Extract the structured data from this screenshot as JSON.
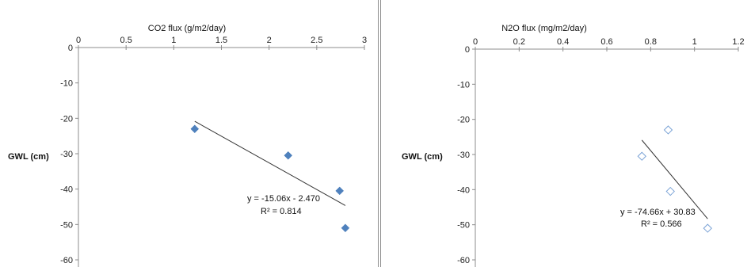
{
  "chart_data": [
    {
      "type": "scatter",
      "title": "CO2 flux (g/m2/day)",
      "xlabel": "",
      "ylabel": "GWL (cm)",
      "xlim": [
        0,
        3
      ],
      "ylim": [
        -60,
        0
      ],
      "x_ticks": [
        "0",
        "0.5",
        "1",
        "1.5",
        "2",
        "2.5",
        "3"
      ],
      "y_ticks": [
        "0",
        "-10",
        "-20",
        "-30",
        "-40",
        "-50",
        "-60"
      ],
      "x_tick_values": [
        0,
        0.5,
        1,
        1.5,
        2,
        2.5,
        3
      ],
      "y_tick_values": [
        0,
        -10,
        -20,
        -30,
        -40,
        -50,
        -60
      ],
      "marker": "filled-diamond",
      "marker_color": "#4f81bd",
      "series": [
        {
          "x": [
            1.22,
            2.2,
            2.74,
            2.8
          ],
          "y": [
            -23,
            -30.5,
            -40.5,
            -51
          ]
        }
      ],
      "trendline": {
        "slope": -15.06,
        "intercept": -2.47,
        "x_range": [
          1.22,
          2.8
        ]
      },
      "equation": "y = -15.06x - 2.470",
      "r2": "R² = 0.814",
      "grid": false
    },
    {
      "type": "scatter",
      "title": "N2O flux (mg/m2/day)",
      "xlabel": "",
      "ylabel": "GWL (cm)",
      "xlim": [
        0,
        1.2
      ],
      "ylim": [
        -60,
        0
      ],
      "x_ticks": [
        "0",
        "0.2",
        "0.4",
        "0.6",
        "0.8",
        "1",
        "1.2"
      ],
      "y_ticks": [
        "0",
        "-10",
        "-20",
        "-30",
        "-40",
        "-50",
        "-60"
      ],
      "x_tick_values": [
        0,
        0.2,
        0.4,
        0.6,
        0.8,
        1,
        1.2
      ],
      "y_tick_values": [
        0,
        -10,
        -20,
        -30,
        -40,
        -50,
        -60
      ],
      "marker": "hollow-diamond",
      "marker_color": "#7ba3d6",
      "series": [
        {
          "x": [
            0.76,
            0.88,
            0.89,
            1.06
          ],
          "y": [
            -30.5,
            -23,
            -40.5,
            -51
          ]
        }
      ],
      "trendline": {
        "slope": -74.66,
        "intercept": 30.83,
        "x_range": [
          0.76,
          1.06
        ]
      },
      "equation": "y = -74.66x + 30.83",
      "r2": "R² = 0.566",
      "grid": false
    }
  ]
}
